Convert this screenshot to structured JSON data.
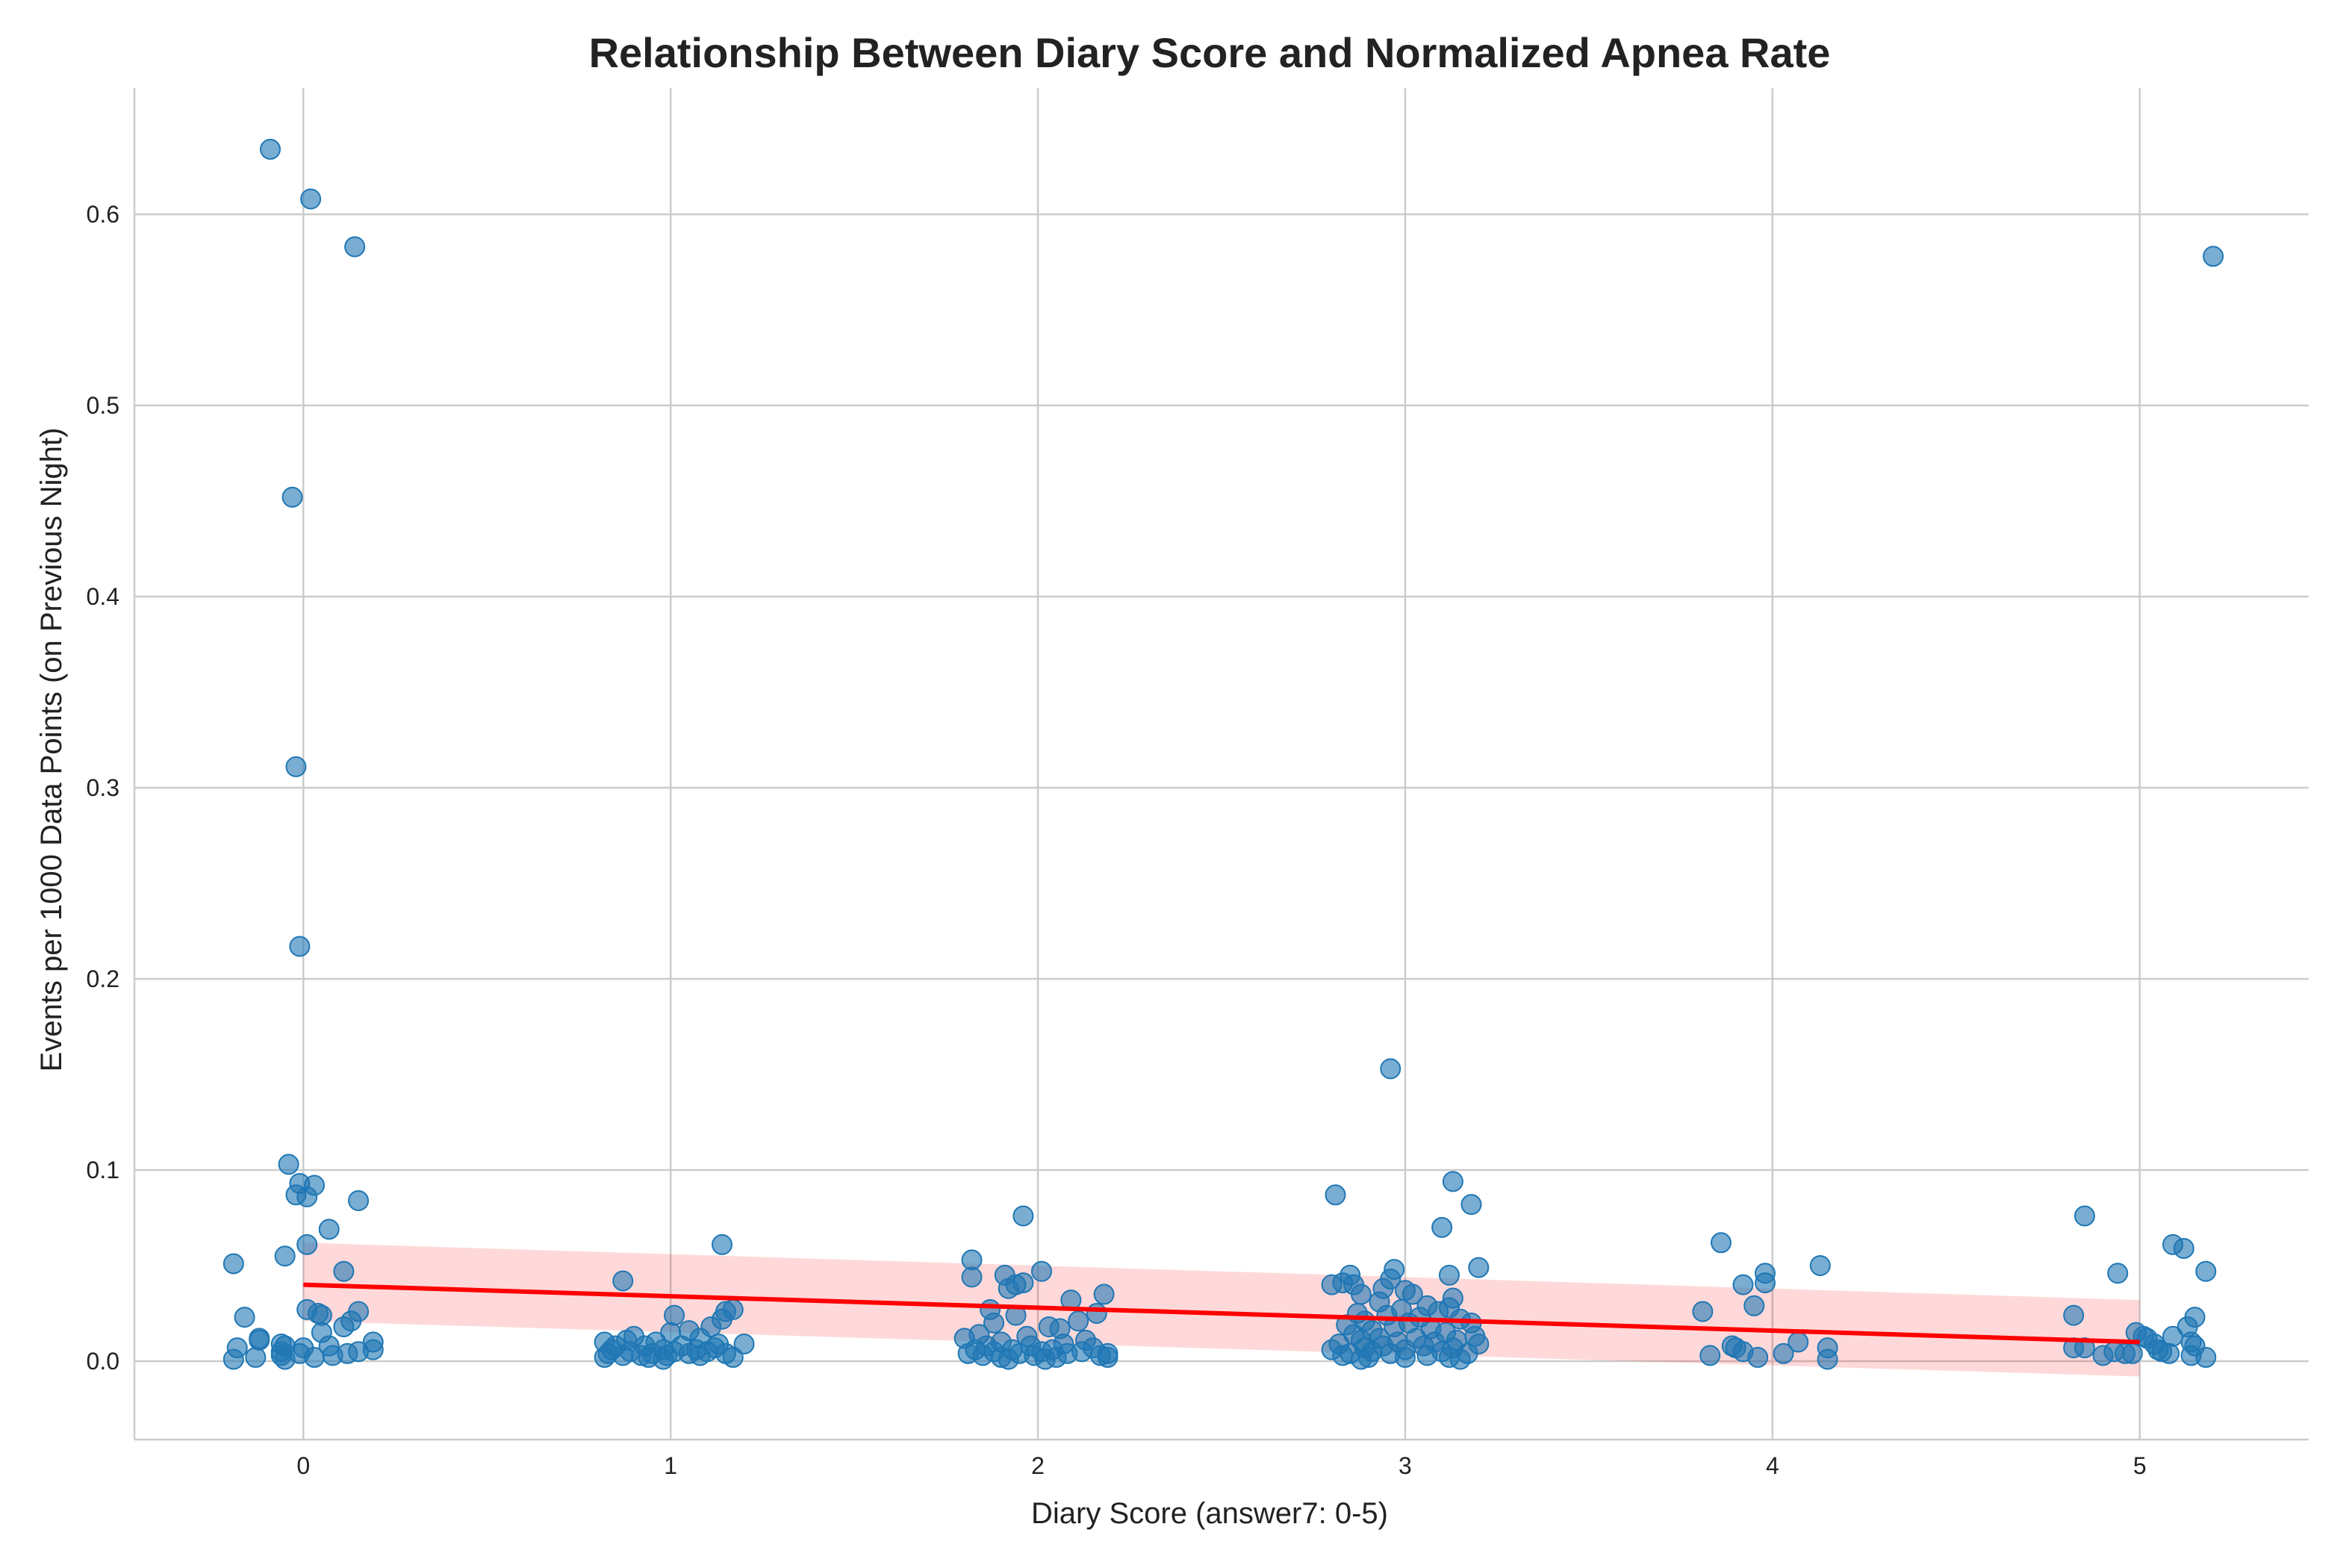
{
  "chart_data": {
    "type": "scatter",
    "title": "Relationship Between Diary Score and Normalized Apnea Rate",
    "xlabel": "Diary Score (answer7: 0-5)",
    "ylabel": "Events per 1000 Data Points (on Previous Night)",
    "xlim": [
      -0.46,
      5.46
    ],
    "ylim": [
      -0.041,
      0.666
    ],
    "x_ticks": [
      0,
      1,
      2,
      3,
      4,
      5
    ],
    "x_tick_labels": [
      "0",
      "1",
      "2",
      "3",
      "4",
      "5"
    ],
    "y_ticks": [
      0.0,
      0.1,
      0.2,
      0.3,
      0.4,
      0.5,
      0.6
    ],
    "y_tick_labels": [
      "0.0",
      "0.1",
      "0.2",
      "0.3",
      "0.4",
      "0.5",
      "0.6"
    ],
    "grid": true,
    "colors": {
      "points": "#1f77b4",
      "regression": "#ff0000",
      "grid": "#cccccc"
    },
    "regression": {
      "x": [
        0,
        5
      ],
      "y": [
        0.04,
        0.01
      ],
      "ci_lower": [
        0.021,
        -0.008
      ],
      "ci_upper": [
        0.062,
        0.032
      ]
    },
    "points": [
      {
        "x": -0.09,
        "y": 0.634
      },
      {
        "x": 0.02,
        "y": 0.608
      },
      {
        "x": 0.14,
        "y": 0.583
      },
      {
        "x": -0.03,
        "y": 0.452
      },
      {
        "x": -0.02,
        "y": 0.311
      },
      {
        "x": -0.01,
        "y": 0.217
      },
      {
        "x": -0.04,
        "y": 0.103
      },
      {
        "x": -0.01,
        "y": 0.093
      },
      {
        "x": 0.03,
        "y": 0.092
      },
      {
        "x": -0.02,
        "y": 0.087
      },
      {
        "x": 0.01,
        "y": 0.086
      },
      {
        "x": 0.15,
        "y": 0.084
      },
      {
        "x": 0.07,
        "y": 0.069
      },
      {
        "x": 0.01,
        "y": 0.061
      },
      {
        "x": -0.05,
        "y": 0.055
      },
      {
        "x": -0.19,
        "y": 0.051
      },
      {
        "x": 0.11,
        "y": 0.047
      },
      {
        "x": 0.01,
        "y": 0.027
      },
      {
        "x": 0.15,
        "y": 0.026
      },
      {
        "x": 0.04,
        "y": 0.025
      },
      {
        "x": 0.05,
        "y": 0.024
      },
      {
        "x": -0.16,
        "y": 0.023
      },
      {
        "x": 0.13,
        "y": 0.021
      },
      {
        "x": 0.11,
        "y": 0.018
      },
      {
        "x": 0.05,
        "y": 0.015
      },
      {
        "x": -0.12,
        "y": 0.012
      },
      {
        "x": -0.12,
        "y": 0.011
      },
      {
        "x": 0.19,
        "y": 0.01
      },
      {
        "x": -0.06,
        "y": 0.009
      },
      {
        "x": -0.05,
        "y": 0.008
      },
      {
        "x": 0.07,
        "y": 0.008
      },
      {
        "x": -0.18,
        "y": 0.007
      },
      {
        "x": 0.0,
        "y": 0.007
      },
      {
        "x": 0.19,
        "y": 0.006
      },
      {
        "x": -0.06,
        "y": 0.005
      },
      {
        "x": 0.15,
        "y": 0.005
      },
      {
        "x": 0.12,
        "y": 0.004
      },
      {
        "x": -0.01,
        "y": 0.004
      },
      {
        "x": -0.06,
        "y": 0.003
      },
      {
        "x": 0.08,
        "y": 0.003
      },
      {
        "x": -0.13,
        "y": 0.002
      },
      {
        "x": 0.03,
        "y": 0.002
      },
      {
        "x": -0.19,
        "y": 0.001
      },
      {
        "x": -0.05,
        "y": 0.001
      },
      {
        "x": 0.87,
        "y": 0.042
      },
      {
        "x": 1.14,
        "y": 0.061
      },
      {
        "x": 1.01,
        "y": 0.024
      },
      {
        "x": 1.17,
        "y": 0.027
      },
      {
        "x": 1.15,
        "y": 0.026
      },
      {
        "x": 1.14,
        "y": 0.022
      },
      {
        "x": 1.11,
        "y": 0.018
      },
      {
        "x": 1.05,
        "y": 0.016
      },
      {
        "x": 1.0,
        "y": 0.015
      },
      {
        "x": 0.9,
        "y": 0.013
      },
      {
        "x": 1.08,
        "y": 0.012
      },
      {
        "x": 0.82,
        "y": 0.01
      },
      {
        "x": 0.88,
        "y": 0.011
      },
      {
        "x": 0.96,
        "y": 0.01
      },
      {
        "x": 1.13,
        "y": 0.009
      },
      {
        "x": 1.2,
        "y": 0.009
      },
      {
        "x": 0.85,
        "y": 0.008
      },
      {
        "x": 0.93,
        "y": 0.008
      },
      {
        "x": 1.03,
        "y": 0.008
      },
      {
        "x": 1.12,
        "y": 0.007
      },
      {
        "x": 0.84,
        "y": 0.006
      },
      {
        "x": 0.98,
        "y": 0.006
      },
      {
        "x": 1.07,
        "y": 0.006
      },
      {
        "x": 0.89,
        "y": 0.005
      },
      {
        "x": 1.01,
        "y": 0.005
      },
      {
        "x": 1.1,
        "y": 0.005
      },
      {
        "x": 0.83,
        "y": 0.004
      },
      {
        "x": 0.95,
        "y": 0.004
      },
      {
        "x": 1.05,
        "y": 0.004
      },
      {
        "x": 1.15,
        "y": 0.004
      },
      {
        "x": 0.87,
        "y": 0.003
      },
      {
        "x": 0.92,
        "y": 0.003
      },
      {
        "x": 0.99,
        "y": 0.003
      },
      {
        "x": 1.08,
        "y": 0.003
      },
      {
        "x": 0.82,
        "y": 0.002
      },
      {
        "x": 0.94,
        "y": 0.002
      },
      {
        "x": 1.17,
        "y": 0.002
      },
      {
        "x": 0.98,
        "y": 0.001
      },
      {
        "x": 1.96,
        "y": 0.076
      },
      {
        "x": 1.82,
        "y": 0.053
      },
      {
        "x": 2.01,
        "y": 0.047
      },
      {
        "x": 1.91,
        "y": 0.045
      },
      {
        "x": 1.82,
        "y": 0.044
      },
      {
        "x": 1.96,
        "y": 0.041
      },
      {
        "x": 1.94,
        "y": 0.04
      },
      {
        "x": 1.92,
        "y": 0.038
      },
      {
        "x": 2.18,
        "y": 0.035
      },
      {
        "x": 2.09,
        "y": 0.032
      },
      {
        "x": 1.87,
        "y": 0.027
      },
      {
        "x": 2.16,
        "y": 0.025
      },
      {
        "x": 1.94,
        "y": 0.024
      },
      {
        "x": 2.11,
        "y": 0.021
      },
      {
        "x": 1.88,
        "y": 0.02
      },
      {
        "x": 2.03,
        "y": 0.018
      },
      {
        "x": 2.06,
        "y": 0.017
      },
      {
        "x": 1.84,
        "y": 0.014
      },
      {
        "x": 1.97,
        "y": 0.013
      },
      {
        "x": 1.8,
        "y": 0.012
      },
      {
        "x": 2.13,
        "y": 0.011
      },
      {
        "x": 1.9,
        "y": 0.01
      },
      {
        "x": 2.07,
        "y": 0.009
      },
      {
        "x": 1.86,
        "y": 0.008
      },
      {
        "x": 1.98,
        "y": 0.008
      },
      {
        "x": 2.15,
        "y": 0.007
      },
      {
        "x": 1.83,
        "y": 0.006
      },
      {
        "x": 1.93,
        "y": 0.006
      },
      {
        "x": 2.04,
        "y": 0.006
      },
      {
        "x": 1.88,
        "y": 0.005
      },
      {
        "x": 2.01,
        "y": 0.005
      },
      {
        "x": 2.12,
        "y": 0.005
      },
      {
        "x": 1.81,
        "y": 0.004
      },
      {
        "x": 1.95,
        "y": 0.004
      },
      {
        "x": 2.08,
        "y": 0.004
      },
      {
        "x": 2.19,
        "y": 0.004
      },
      {
        "x": 1.85,
        "y": 0.003
      },
      {
        "x": 1.99,
        "y": 0.003
      },
      {
        "x": 2.17,
        "y": 0.003
      },
      {
        "x": 1.9,
        "y": 0.002
      },
      {
        "x": 2.05,
        "y": 0.002
      },
      {
        "x": 2.19,
        "y": 0.002
      },
      {
        "x": 1.92,
        "y": 0.001
      },
      {
        "x": 2.02,
        "y": 0.001
      },
      {
        "x": 2.96,
        "y": 0.153
      },
      {
        "x": 3.13,
        "y": 0.094
      },
      {
        "x": 2.81,
        "y": 0.087
      },
      {
        "x": 3.18,
        "y": 0.082
      },
      {
        "x": 3.1,
        "y": 0.07
      },
      {
        "x": 3.2,
        "y": 0.049
      },
      {
        "x": 2.97,
        "y": 0.048
      },
      {
        "x": 2.85,
        "y": 0.045
      },
      {
        "x": 3.12,
        "y": 0.045
      },
      {
        "x": 2.96,
        "y": 0.043
      },
      {
        "x": 2.83,
        "y": 0.041
      },
      {
        "x": 2.86,
        "y": 0.04
      },
      {
        "x": 2.8,
        "y": 0.04
      },
      {
        "x": 2.94,
        "y": 0.038
      },
      {
        "x": 3.0,
        "y": 0.037
      },
      {
        "x": 2.88,
        "y": 0.035
      },
      {
        "x": 3.02,
        "y": 0.035
      },
      {
        "x": 3.13,
        "y": 0.033
      },
      {
        "x": 2.93,
        "y": 0.031
      },
      {
        "x": 3.06,
        "y": 0.029
      },
      {
        "x": 3.12,
        "y": 0.028
      },
      {
        "x": 2.99,
        "y": 0.027
      },
      {
        "x": 3.09,
        "y": 0.026
      },
      {
        "x": 2.87,
        "y": 0.025
      },
      {
        "x": 2.95,
        "y": 0.024
      },
      {
        "x": 3.04,
        "y": 0.023
      },
      {
        "x": 3.15,
        "y": 0.022
      },
      {
        "x": 2.89,
        "y": 0.021
      },
      {
        "x": 3.01,
        "y": 0.02
      },
      {
        "x": 3.18,
        "y": 0.02
      },
      {
        "x": 2.84,
        "y": 0.019
      },
      {
        "x": 2.97,
        "y": 0.018
      },
      {
        "x": 3.07,
        "y": 0.017
      },
      {
        "x": 2.91,
        "y": 0.016
      },
      {
        "x": 3.11,
        "y": 0.015
      },
      {
        "x": 2.86,
        "y": 0.014
      },
      {
        "x": 3.19,
        "y": 0.013
      },
      {
        "x": 2.93,
        "y": 0.012
      },
      {
        "x": 3.03,
        "y": 0.012
      },
      {
        "x": 2.88,
        "y": 0.011
      },
      {
        "x": 3.14,
        "y": 0.011
      },
      {
        "x": 2.98,
        "y": 0.01
      },
      {
        "x": 3.08,
        "y": 0.01
      },
      {
        "x": 2.82,
        "y": 0.009
      },
      {
        "x": 3.2,
        "y": 0.009
      },
      {
        "x": 2.94,
        "y": 0.008
      },
      {
        "x": 3.05,
        "y": 0.008
      },
      {
        "x": 2.89,
        "y": 0.007
      },
      {
        "x": 3.13,
        "y": 0.007
      },
      {
        "x": 2.8,
        "y": 0.006
      },
      {
        "x": 3.0,
        "y": 0.006
      },
      {
        "x": 2.91,
        "y": 0.005
      },
      {
        "x": 3.1,
        "y": 0.005
      },
      {
        "x": 2.85,
        "y": 0.004
      },
      {
        "x": 2.96,
        "y": 0.004
      },
      {
        "x": 3.17,
        "y": 0.004
      },
      {
        "x": 2.83,
        "y": 0.003
      },
      {
        "x": 3.06,
        "y": 0.003
      },
      {
        "x": 2.9,
        "y": 0.002
      },
      {
        "x": 3.12,
        "y": 0.002
      },
      {
        "x": 3.0,
        "y": 0.002
      },
      {
        "x": 2.88,
        "y": 0.001
      },
      {
        "x": 3.15,
        "y": 0.001
      },
      {
        "x": 3.86,
        "y": 0.062
      },
      {
        "x": 4.13,
        "y": 0.05
      },
      {
        "x": 3.98,
        "y": 0.046
      },
      {
        "x": 3.98,
        "y": 0.041
      },
      {
        "x": 3.92,
        "y": 0.04
      },
      {
        "x": 3.95,
        "y": 0.029
      },
      {
        "x": 3.81,
        "y": 0.026
      },
      {
        "x": 4.07,
        "y": 0.01
      },
      {
        "x": 3.89,
        "y": 0.008
      },
      {
        "x": 3.9,
        "y": 0.007
      },
      {
        "x": 4.15,
        "y": 0.007
      },
      {
        "x": 3.92,
        "y": 0.005
      },
      {
        "x": 4.03,
        "y": 0.004
      },
      {
        "x": 3.83,
        "y": 0.003
      },
      {
        "x": 3.96,
        "y": 0.002
      },
      {
        "x": 4.15,
        "y": 0.001
      },
      {
        "x": 5.2,
        "y": 0.578
      },
      {
        "x": 4.85,
        "y": 0.076
      },
      {
        "x": 5.09,
        "y": 0.061
      },
      {
        "x": 5.12,
        "y": 0.059
      },
      {
        "x": 5.18,
        "y": 0.047
      },
      {
        "x": 4.94,
        "y": 0.046
      },
      {
        "x": 4.82,
        "y": 0.024
      },
      {
        "x": 5.15,
        "y": 0.023
      },
      {
        "x": 5.13,
        "y": 0.018
      },
      {
        "x": 4.99,
        "y": 0.015
      },
      {
        "x": 5.01,
        "y": 0.013
      },
      {
        "x": 5.09,
        "y": 0.013
      },
      {
        "x": 5.02,
        "y": 0.012
      },
      {
        "x": 5.14,
        "y": 0.01
      },
      {
        "x": 5.04,
        "y": 0.009
      },
      {
        "x": 5.15,
        "y": 0.008
      },
      {
        "x": 4.82,
        "y": 0.007
      },
      {
        "x": 4.85,
        "y": 0.007
      },
      {
        "x": 5.05,
        "y": 0.006
      },
      {
        "x": 5.06,
        "y": 0.005
      },
      {
        "x": 4.93,
        "y": 0.005
      },
      {
        "x": 4.96,
        "y": 0.004
      },
      {
        "x": 4.98,
        "y": 0.004
      },
      {
        "x": 5.08,
        "y": 0.004
      },
      {
        "x": 4.9,
        "y": 0.003
      },
      {
        "x": 5.14,
        "y": 0.003
      },
      {
        "x": 5.18,
        "y": 0.002
      }
    ]
  }
}
